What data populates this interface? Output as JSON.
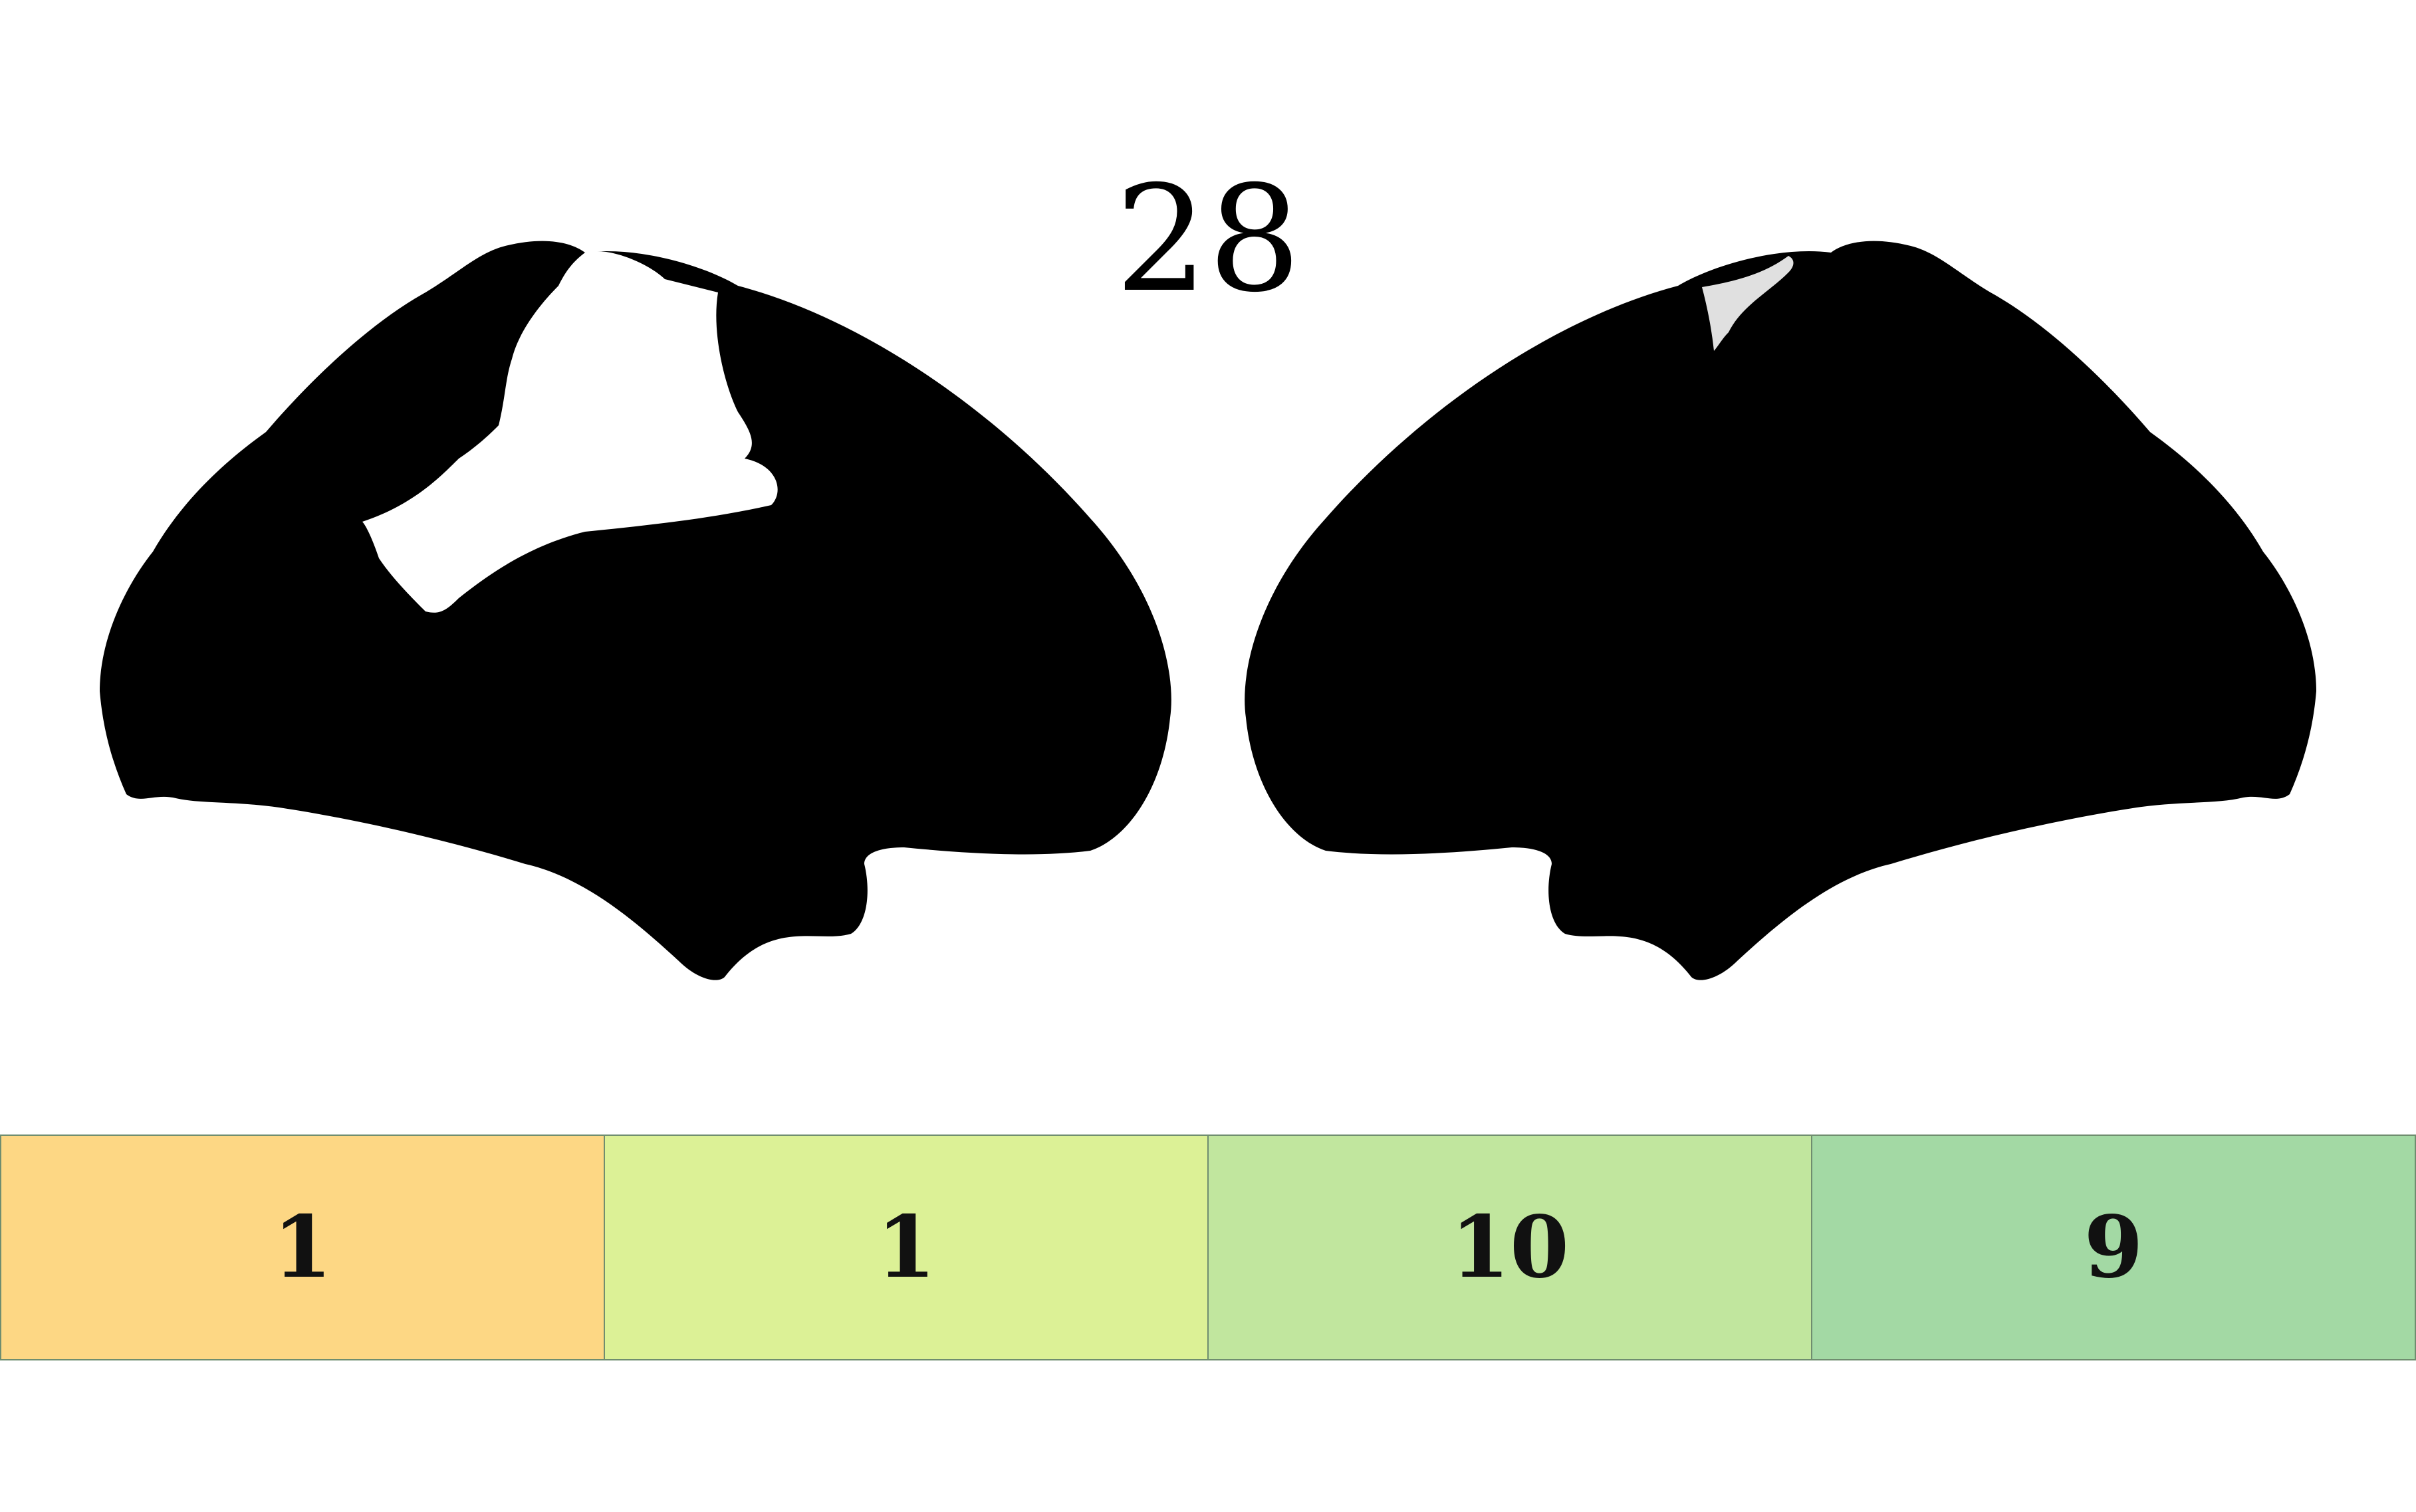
{
  "title": "28",
  "brain_views": [
    {
      "name": "left-hemisphere-lateral",
      "fill": "#000000",
      "highlight": "#ffffff"
    },
    {
      "name": "right-hemisphere-lateral",
      "fill": "#000000",
      "highlight": "#e0e0e0"
    }
  ],
  "score_bar": {
    "cells": [
      {
        "value": "1",
        "color": "#fdd784"
      },
      {
        "value": "1",
        "color": "#dcf196"
      },
      {
        "value": "10",
        "color": "#c1e69e"
      },
      {
        "value": "9",
        "color": "#a3d9a4"
      }
    ]
  }
}
